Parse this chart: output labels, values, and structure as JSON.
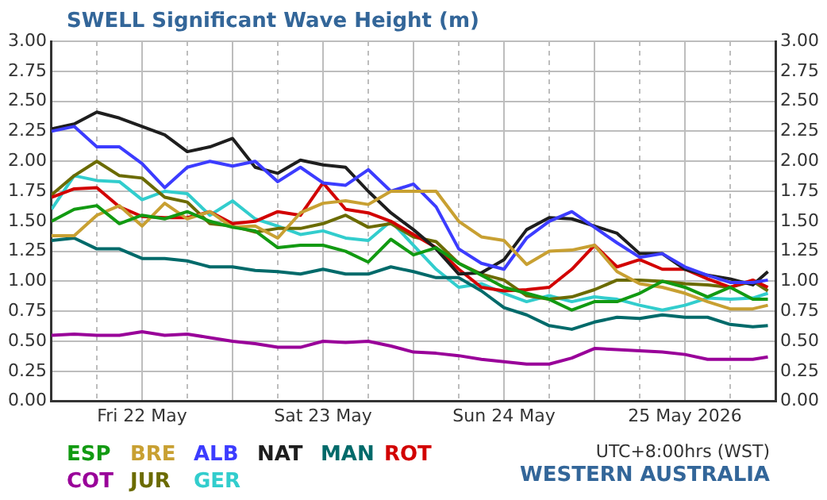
{
  "chart_data": {
    "type": "line",
    "title": "SWELL Significant Wave Height (m)",
    "x": [
      "2026-05-22T00:00",
      "2026-05-22T03:00",
      "2026-05-22T06:00",
      "2026-05-22T09:00",
      "2026-05-22T12:00",
      "2026-05-22T15:00",
      "2026-05-22T18:00",
      "2026-05-22T21:00",
      "2026-05-23T00:00",
      "2026-05-23T03:00",
      "2026-05-23T06:00",
      "2026-05-23T09:00",
      "2026-05-23T12:00",
      "2026-05-23T15:00",
      "2026-05-23T18:00",
      "2026-05-23T21:00",
      "2026-05-24T00:00",
      "2026-05-24T03:00",
      "2026-05-24T06:00",
      "2026-05-24T09:00",
      "2026-05-24T12:00",
      "2026-05-24T15:00",
      "2026-05-24T18:00",
      "2026-05-24T21:00",
      "2026-05-25T00:00",
      "2026-05-25T03:00",
      "2026-05-25T06:00",
      "2026-05-25T09:00",
      "2026-05-25T12:00",
      "2026-05-25T15:00",
      "2026-05-25T18:00",
      "2026-05-25T21:00",
      "2026-05-25T23:00"
    ],
    "xlim": [
      "2026-05-22T00:00",
      "2026-05-26T00:00"
    ],
    "xticks": [
      {
        "value": "2026-05-22T00:00",
        "label": null
      },
      {
        "value": "2026-05-22T06:00",
        "label": null
      },
      {
        "value": "2026-05-22T12:00",
        "label": "Fri 22 May"
      },
      {
        "value": "2026-05-22T18:00",
        "label": null
      },
      {
        "value": "2026-05-23T00:00",
        "label": null
      },
      {
        "value": "2026-05-23T06:00",
        "label": null
      },
      {
        "value": "2026-05-23T12:00",
        "label": "Sat 23 May"
      },
      {
        "value": "2026-05-23T18:00",
        "label": null
      },
      {
        "value": "2026-05-24T00:00",
        "label": null
      },
      {
        "value": "2026-05-24T06:00",
        "label": null
      },
      {
        "value": "2026-05-24T12:00",
        "label": "Sun 24 May"
      },
      {
        "value": "2026-05-24T18:00",
        "label": null
      },
      {
        "value": "2026-05-25T00:00",
        "label": null
      },
      {
        "value": "2026-05-25T06:00",
        "label": null
      },
      {
        "value": "2026-05-25T12:00",
        "label": "25 May 2026"
      },
      {
        "value": "2026-05-25T18:00",
        "label": null
      },
      {
        "value": "2026-05-26T00:00",
        "label": null
      }
    ],
    "ylim": [
      0,
      3
    ],
    "yticks": [
      {
        "value": 0,
        "label": "0.00"
      },
      {
        "value": 0.25,
        "label": "0.25"
      },
      {
        "value": 0.5,
        "label": "0.50"
      },
      {
        "value": 0.75,
        "label": "0.75"
      },
      {
        "value": 1,
        "label": "1.00"
      },
      {
        "value": 1.25,
        "label": "1.25"
      },
      {
        "value": 1.5,
        "label": "1.50"
      },
      {
        "value": 1.75,
        "label": "1.75"
      },
      {
        "value": 2,
        "label": "2.00"
      },
      {
        "value": 2.25,
        "label": "2.25"
      },
      {
        "value": 2.5,
        "label": "2.50"
      },
      {
        "value": 2.75,
        "label": "2.75"
      },
      {
        "value": 3,
        "label": "3.00"
      }
    ],
    "y2lim": [
      0,
      3
    ],
    "y2ticks": [
      {
        "value": 0,
        "label": "0.00"
      },
      {
        "value": 0.25,
        "label": "0.25"
      },
      {
        "value": 0.5,
        "label": "0.50"
      },
      {
        "value": 0.75,
        "label": "0.75"
      },
      {
        "value": 1,
        "label": "1.00"
      },
      {
        "value": 1.25,
        "label": "1.25"
      },
      {
        "value": 1.5,
        "label": "1.50"
      },
      {
        "value": 1.75,
        "label": "1.75"
      },
      {
        "value": 2,
        "label": "2.00"
      },
      {
        "value": 2.25,
        "label": "2.25"
      },
      {
        "value": 2.5,
        "label": "2.50"
      },
      {
        "value": 2.75,
        "label": "2.75"
      },
      {
        "value": 3,
        "label": "3.00"
      }
    ],
    "grid": true,
    "legend": "bottom left",
    "marker": "none",
    "line_style": "solid",
    "annotations": [
      "UTC+8:00hrs (WST)",
      "WESTERN AUSTRALIA"
    ],
    "series": [
      {
        "name": "ESP",
        "color": "#129a12",
        "values": [
          1.5,
          1.6,
          1.63,
          1.48,
          1.55,
          1.52,
          1.58,
          1.5,
          1.45,
          1.42,
          1.28,
          1.3,
          1.3,
          1.25,
          1.16,
          1.35,
          1.22,
          1.28,
          1.15,
          1.05,
          0.95,
          0.9,
          0.85,
          0.76,
          0.83,
          0.83,
          0.9,
          1.0,
          0.95,
          0.87,
          0.95,
          0.85,
          0.85
        ]
      },
      {
        "name": "BRE",
        "color": "#c8a032",
        "values": [
          1.38,
          1.38,
          1.55,
          1.63,
          1.46,
          1.65,
          1.52,
          1.58,
          1.45,
          1.46,
          1.36,
          1.57,
          1.65,
          1.67,
          1.64,
          1.75,
          1.75,
          1.75,
          1.5,
          1.37,
          1.34,
          1.14,
          1.25,
          1.26,
          1.3,
          1.08,
          0.98,
          0.95,
          0.9,
          0.83,
          0.77,
          0.77,
          0.8
        ]
      },
      {
        "name": "ALB",
        "color": "#3c3cff",
        "values": [
          2.25,
          2.29,
          2.12,
          2.12,
          1.98,
          1.78,
          1.95,
          2.0,
          1.96,
          2.0,
          1.83,
          1.95,
          1.82,
          1.8,
          1.93,
          1.75,
          1.81,
          1.62,
          1.27,
          1.15,
          1.1,
          1.36,
          1.5,
          1.58,
          1.45,
          1.32,
          1.2,
          1.23,
          1.12,
          1.05,
          0.99,
          0.99,
          1.01
        ]
      },
      {
        "name": "NAT",
        "color": "#1e1e1e",
        "values": [
          2.27,
          2.31,
          2.41,
          2.36,
          2.29,
          2.22,
          2.08,
          2.12,
          2.19,
          1.95,
          1.9,
          2.01,
          1.97,
          1.95,
          1.75,
          1.57,
          1.43,
          1.27,
          1.06,
          1.07,
          1.18,
          1.43,
          1.53,
          1.52,
          1.46,
          1.4,
          1.23,
          1.23,
          1.1,
          1.05,
          1.02,
          0.97,
          1.08
        ]
      },
      {
        "name": "MAN",
        "color": "#006a6a",
        "values": [
          1.34,
          1.36,
          1.27,
          1.27,
          1.19,
          1.19,
          1.17,
          1.12,
          1.12,
          1.09,
          1.08,
          1.06,
          1.1,
          1.06,
          1.06,
          1.12,
          1.08,
          1.03,
          1.03,
          0.92,
          0.78,
          0.72,
          0.63,
          0.6,
          0.66,
          0.7,
          0.69,
          0.72,
          0.7,
          0.7,
          0.64,
          0.62,
          0.63
        ]
      },
      {
        "name": "ROT",
        "color": "#d20000",
        "values": [
          1.7,
          1.77,
          1.78,
          1.62,
          1.54,
          1.53,
          1.53,
          1.58,
          1.48,
          1.5,
          1.58,
          1.55,
          1.82,
          1.6,
          1.57,
          1.5,
          1.39,
          1.28,
          1.1,
          0.95,
          0.92,
          0.93,
          0.95,
          1.1,
          1.3,
          1.12,
          1.18,
          1.1,
          1.1,
          1.02,
          0.95,
          1.01,
          0.95
        ]
      },
      {
        "name": "COT",
        "color": "#990099",
        "values": [
          0.55,
          0.56,
          0.55,
          0.55,
          0.58,
          0.55,
          0.56,
          0.53,
          0.5,
          0.48,
          0.45,
          0.45,
          0.5,
          0.49,
          0.5,
          0.46,
          0.41,
          0.4,
          0.38,
          0.35,
          0.33,
          0.31,
          0.31,
          0.36,
          0.44,
          0.43,
          0.42,
          0.41,
          0.39,
          0.35,
          0.35,
          0.35,
          0.37
        ]
      },
      {
        "name": "JUR",
        "color": "#6b6b00",
        "values": [
          1.72,
          1.88,
          2.0,
          1.88,
          1.86,
          1.7,
          1.66,
          1.48,
          1.46,
          1.41,
          1.44,
          1.44,
          1.48,
          1.55,
          1.45,
          1.48,
          1.37,
          1.33,
          1.15,
          1.06,
          1.01,
          0.88,
          0.85,
          0.87,
          0.93,
          1.01,
          1.01,
          1.0,
          0.98,
          0.97,
          0.95,
          1.0,
          0.92
        ]
      },
      {
        "name": "GER",
        "color": "#32cdcd",
        "values": [
          1.6,
          1.88,
          1.84,
          1.83,
          1.68,
          1.75,
          1.73,
          1.55,
          1.67,
          1.52,
          1.46,
          1.39,
          1.42,
          1.36,
          1.34,
          1.5,
          1.3,
          1.1,
          0.95,
          0.98,
          0.9,
          0.83,
          0.88,
          0.83,
          0.87,
          0.85,
          0.8,
          0.76,
          0.8,
          0.86,
          0.85,
          0.86,
          0.9
        ]
      }
    ]
  }
}
